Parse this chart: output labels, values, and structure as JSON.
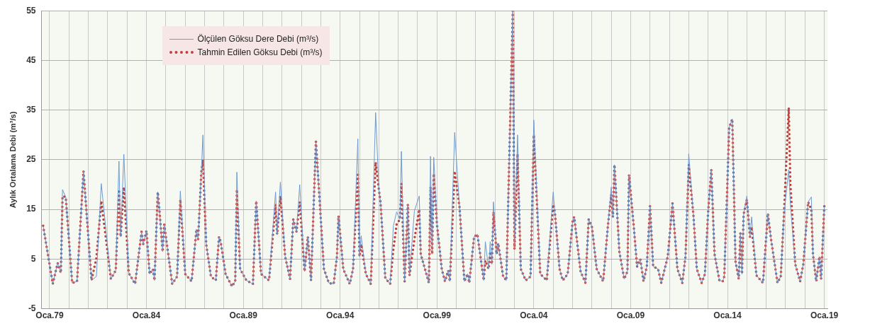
{
  "chart_data": {
    "type": "line",
    "ylabel": "Aylık Ortalama Debi (m³/s)",
    "legend": "top left",
    "grid": true,
    "marker": "none",
    "x": [
      "1978-09",
      "1979-03",
      "1979-06",
      "1979-08",
      "1979-09",
      "1979-11",
      "1980-03",
      "1980-06",
      "1980-10",
      "1981-03",
      "1981-06",
      "1981-09",
      "1982-03",
      "1982-06",
      "1982-08",
      "1982-09",
      "1982-11",
      "1983-02",
      "1983-06",
      "1983-10",
      "1983-11",
      "1984-01",
      "1984-03",
      "1984-05",
      "1984-06",
      "1984-08",
      "1984-09",
      "1984-11",
      "1984-12",
      "1985-05",
      "1985-08",
      "1985-10",
      "1986-01",
      "1986-05",
      "1986-08",
      "1986-09",
      "1986-11",
      "1986-12",
      "1987-02",
      "1987-05",
      "1987-08",
      "1987-10",
      "1987-11",
      "1988-02",
      "1988-06",
      "1988-08",
      "1988-09",
      "1988-11",
      "1989-03",
      "1989-07",
      "1989-09",
      "1989-12",
      "1990-05",
      "1990-09",
      "1990-10",
      "1990-12",
      "1991-03",
      "1991-06",
      "1991-08",
      "1991-10",
      "1991-12",
      "1992-03",
      "1992-05",
      "1992-07",
      "1992-10",
      "1993-03",
      "1993-06",
      "1993-09",
      "1993-11",
      "1993-12",
      "1994-03",
      "1994-07",
      "1994-09",
      "1994-12",
      "1995-01",
      "1995-02",
      "1995-05",
      "1995-08",
      "1995-11",
      "1996-01",
      "1996-02",
      "1996-05",
      "1996-08",
      "1996-10",
      "1996-12",
      "1997-02",
      "1997-03",
      "1997-05",
      "1997-07",
      "1997-08",
      "1997-11",
      "1998-02",
      "1998-03",
      "1998-08",
      "1998-09",
      "1998-10",
      "1998-11",
      "1999-01",
      "1999-04",
      "1999-06",
      "1999-08",
      "1999-09",
      "1999-12",
      "2000-03",
      "2000-06",
      "2000-08",
      "2000-09",
      "2000-12",
      "2001-02",
      "2001-06",
      "2001-07",
      "2001-09",
      "2001-10",
      "2001-11",
      "2001-12",
      "2002-02",
      "2002-03",
      "2002-06",
      "2002-08",
      "2002-12",
      "2003-01",
      "2003-03",
      "2003-05",
      "2003-08",
      "2003-11",
      "2004-01",
      "2004-05",
      "2004-09",
      "2005-01",
      "2005-02",
      "2005-05",
      "2005-07",
      "2005-10",
      "2006-01",
      "2006-02",
      "2006-06",
      "2006-09",
      "2006-11",
      "2007-01",
      "2007-04",
      "2007-08",
      "2007-11",
      "2008-01",
      "2008-02",
      "2008-03",
      "2008-06",
      "2008-09",
      "2008-11",
      "2008-12",
      "2009-03",
      "2009-05",
      "2009-07",
      "2009-09",
      "2009-11",
      "2010-01",
      "2010-03",
      "2010-06",
      "2010-08",
      "2010-12",
      "2011-03",
      "2011-06",
      "2011-09",
      "2011-11",
      "2012-01",
      "2012-04",
      "2012-06",
      "2012-09",
      "2012-11",
      "2013-01",
      "2013-03",
      "2013-05",
      "2013-08",
      "2013-10",
      "2013-11",
      "2014-01",
      "2014-02",
      "2014-04",
      "2014-06",
      "2014-08",
      "2014-09",
      "2014-10",
      "2014-11",
      "2015-01",
      "2015-03",
      "2015-04",
      "2015-07",
      "2015-11",
      "2016-02",
      "2016-04",
      "2016-08",
      "2016-10",
      "2016-12",
      "2017-03",
      "2017-04",
      "2017-07",
      "2017-10",
      "2017-12",
      "2018-03",
      "2018-05",
      "2018-06",
      "2018-08",
      "2018-10",
      "2018-11",
      "2019-01"
    ],
    "series": [
      {
        "name": "Ölçülen Göksu Dere Debi (m³/s)",
        "color": "#6d9ad0",
        "line_style": "solid",
        "values": [
          11.7,
          0,
          4.2,
          2.2,
          19,
          17.5,
          0.2,
          0.5,
          22.7,
          0.7,
          1.5,
          20.2,
          1,
          2.7,
          24.7,
          9.5,
          26.1,
          2.2,
          0,
          10.5,
          8,
          10.7,
          2,
          3,
          0.7,
          18.5,
          15,
          6.5,
          12,
          0,
          1.5,
          18.7,
          2,
          0.5,
          11,
          9,
          22.5,
          30,
          8,
          1.5,
          0.7,
          9.5,
          8.5,
          2,
          -0.5,
          0.5,
          22.5,
          3,
          0.7,
          0,
          16.7,
          2,
          0.7,
          18.5,
          10,
          20.5,
          5.5,
          1,
          13,
          10.5,
          20,
          2.5,
          9.5,
          0.7,
          28.7,
          3,
          0.2,
          0,
          5.5,
          13.7,
          3,
          0,
          3,
          29.2,
          5.5,
          9.7,
          2,
          0,
          34.5,
          19,
          16.5,
          1.2,
          0,
          11.7,
          14.5,
          13,
          26.7,
          0.5,
          16,
          1.7,
          14.7,
          17.7,
          6,
          0.2,
          25.7,
          6,
          25.5,
          12,
          3,
          0.5,
          2.7,
          0.5,
          30.5,
          15.5,
          0.5,
          2,
          0.2,
          9.5,
          10,
          0.7,
          8.5,
          3,
          8.5,
          4,
          16.5,
          6,
          8.2,
          1.5,
          0.7,
          55,
          7,
          30,
          3,
          0.7,
          1.5,
          33,
          2,
          0.7,
          18.5,
          14.5,
          3,
          0.7,
          2,
          12.5,
          13.5,
          2.5,
          0.2,
          13,
          11.5,
          3,
          0.5,
          12,
          19.5,
          13.5,
          24,
          6.5,
          1,
          2.5,
          22,
          11.5,
          3.5,
          5,
          0.5,
          3.5,
          15.7,
          3.5,
          3,
          0.2,
          5.5,
          16.2,
          3,
          0.2,
          5.5,
          26.2,
          13.5,
          3,
          0.2,
          2,
          14.5,
          23,
          6,
          0.7,
          0.5,
          1.5,
          21,
          31.5,
          33.2,
          4.5,
          1,
          10.2,
          2,
          14,
          17.7,
          9.5,
          13.5,
          1.7,
          0.2,
          14.2,
          9,
          0.2,
          1.5,
          14,
          23,
          16,
          4,
          0.5,
          4,
          16.5,
          17.5,
          6,
          0.5,
          5.5,
          1,
          15.7
        ]
      },
      {
        "name": "Tahmin Edilen Göksu Debi (m³/s)",
        "color": "#c0403d",
        "line_style": "dotted",
        "values": [
          11.7,
          0,
          4.2,
          2.2,
          17.7,
          17.5,
          0.2,
          0.5,
          22.7,
          0.7,
          5.2,
          16.7,
          1,
          2.7,
          19,
          9.5,
          19.5,
          2.2,
          0,
          10.5,
          8,
          10.7,
          2,
          3,
          0.7,
          18.5,
          15,
          6.5,
          12,
          0,
          1.5,
          17,
          2,
          0.5,
          11,
          9,
          22.5,
          25,
          8,
          1.5,
          0.7,
          9.5,
          8.5,
          2,
          -0.5,
          0.5,
          19,
          3,
          0.7,
          0,
          16.7,
          2,
          0.7,
          16,
          10,
          17.7,
          5.5,
          1,
          13,
          10.5,
          16.5,
          2.5,
          9.5,
          0.7,
          28.7,
          3,
          0.2,
          0,
          5.5,
          13.7,
          3,
          0,
          3,
          22,
          5.5,
          8,
          2,
          0,
          24.5,
          19,
          16.5,
          1.2,
          0,
          7,
          12,
          13,
          20.2,
          0.5,
          16,
          1.7,
          9,
          15,
          6,
          0.2,
          19.5,
          6,
          22.2,
          12,
          3,
          0.5,
          2.7,
          0.5,
          22.7,
          15.5,
          0.5,
          2,
          0.2,
          9.5,
          10,
          0.7,
          4.7,
          3,
          6.5,
          4,
          14.5,
          6,
          8.2,
          1.5,
          0.7,
          55,
          7,
          26.2,
          3,
          0.7,
          1.5,
          30,
          2,
          0.7,
          16,
          14.5,
          3,
          0.7,
          2,
          12.5,
          13.5,
          2.5,
          0.2,
          13,
          11.5,
          3,
          0.5,
          12,
          18,
          13.5,
          24,
          6.5,
          1,
          2.5,
          22,
          11.5,
          3.5,
          5,
          0.5,
          3.5,
          15.7,
          3.5,
          3,
          0.2,
          5.5,
          16.2,
          3,
          0.2,
          5.5,
          24,
          13.5,
          3,
          0.2,
          2,
          14.5,
          23,
          6,
          0.7,
          0.5,
          1.5,
          21,
          31.5,
          33.2,
          4.5,
          1,
          10.2,
          2,
          14,
          17,
          9.5,
          11.5,
          1.7,
          0.2,
          14.2,
          9,
          0.2,
          1.5,
          14,
          35.5,
          20,
          4,
          0.5,
          4,
          16.5,
          15,
          6,
          0.5,
          5.5,
          1,
          15.7
        ]
      }
    ],
    "xlim": [
      "1978-08",
      "2019-03"
    ],
    "xticks": [
      {
        "value": "1979-01",
        "label": "Oca.79"
      },
      {
        "value": "1980-01",
        "label": null
      },
      {
        "value": "1981-01",
        "label": null
      },
      {
        "value": "1982-01",
        "label": null
      },
      {
        "value": "1983-01",
        "label": null
      },
      {
        "value": "1984-01",
        "label": "Oca.84"
      },
      {
        "value": "1985-01",
        "label": null
      },
      {
        "value": "1986-01",
        "label": null
      },
      {
        "value": "1987-01",
        "label": null
      },
      {
        "value": "1988-01",
        "label": null
      },
      {
        "value": "1989-01",
        "label": "Oca.89"
      },
      {
        "value": "1990-01",
        "label": null
      },
      {
        "value": "1991-01",
        "label": null
      },
      {
        "value": "1992-01",
        "label": null
      },
      {
        "value": "1993-01",
        "label": null
      },
      {
        "value": "1994-01",
        "label": "Oca.94"
      },
      {
        "value": "1995-01",
        "label": null
      },
      {
        "value": "1996-01",
        "label": null
      },
      {
        "value": "1997-01",
        "label": null
      },
      {
        "value": "1998-01",
        "label": null
      },
      {
        "value": "1999-01",
        "label": "Oca.99"
      },
      {
        "value": "2000-01",
        "label": null
      },
      {
        "value": "2001-01",
        "label": null
      },
      {
        "value": "2002-01",
        "label": null
      },
      {
        "value": "2003-01",
        "label": null
      },
      {
        "value": "2004-01",
        "label": "Oca.04"
      },
      {
        "value": "2005-01",
        "label": null
      },
      {
        "value": "2006-01",
        "label": null
      },
      {
        "value": "2007-01",
        "label": null
      },
      {
        "value": "2008-01",
        "label": null
      },
      {
        "value": "2009-01",
        "label": "Oca.09"
      },
      {
        "value": "2010-01",
        "label": null
      },
      {
        "value": "2011-01",
        "label": null
      },
      {
        "value": "2012-01",
        "label": null
      },
      {
        "value": "2013-01",
        "label": null
      },
      {
        "value": "2014-01",
        "label": "Oca.14"
      },
      {
        "value": "2015-01",
        "label": null
      },
      {
        "value": "2016-01",
        "label": null
      },
      {
        "value": "2017-01",
        "label": null
      },
      {
        "value": "2018-01",
        "label": null
      },
      {
        "value": "2019-01",
        "label": "Oca.19"
      }
    ],
    "ylim": [
      -5,
      55
    ],
    "yticks": [
      -5,
      5,
      15,
      25,
      35,
      45,
      55
    ]
  }
}
